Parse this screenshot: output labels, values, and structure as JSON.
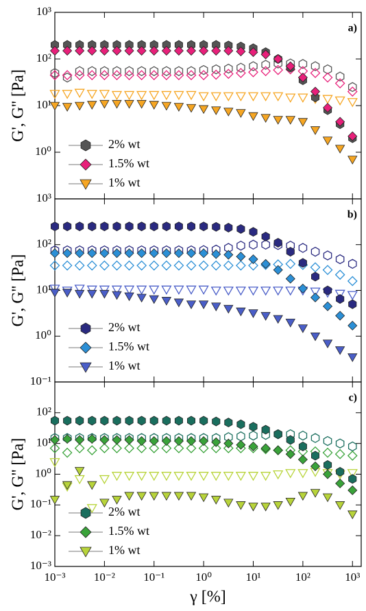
{
  "chart_data": [
    {
      "type": "scatter",
      "label": "a)",
      "ylabel": "G', G'' [Pa]",
      "log_x": true,
      "log_y": true,
      "legend": "lower left",
      "xlim": [
        0.001,
        1500
      ],
      "xticks": [
        0.001,
        0.01,
        0.1,
        1,
        10,
        100,
        1000
      ],
      "ylim": [
        0.1,
        1000
      ],
      "yticks": [
        {
          "value": 1,
          "label": "10⁰"
        },
        {
          "value": 10,
          "label": "10¹"
        },
        {
          "value": 100,
          "label": "10²"
        },
        {
          "value": 1000,
          "label": "10³"
        }
      ],
      "x": [
        0.001,
        0.00178,
        0.00316,
        0.00562,
        0.01,
        0.0178,
        0.0316,
        0.0562,
        0.1,
        0.178,
        0.316,
        0.562,
        1,
        1.78,
        3.16,
        5.62,
        10,
        17.8,
        31.6,
        56.2,
        100,
        178,
        316,
        562,
        1000
      ],
      "series": [
        {
          "name": "2% wt",
          "color": "#555555",
          "marker": "hexagon",
          "filled": true,
          "values": [
            200,
            200,
            200,
            200,
            200,
            200,
            200,
            200,
            200,
            200,
            200,
            200,
            200,
            200,
            195,
            185,
            170,
            140,
            100,
            65,
            35,
            15,
            8,
            4,
            2
          ]
        },
        {
          "color": "#555555",
          "marker": "hexagon",
          "filled": false,
          "values": [
            50,
            40,
            55,
            55,
            55,
            55,
            55,
            55,
            55,
            55,
            55,
            55,
            58,
            60,
            62,
            65,
            70,
            75,
            80,
            80,
            78,
            70,
            60,
            42,
            25
          ]
        },
        {
          "name": "1.5% wt",
          "color": "#e8207a",
          "marker": "diamond",
          "filled": true,
          "values": [
            150,
            150,
            150,
            150,
            150,
            150,
            150,
            150,
            150,
            150,
            150,
            150,
            150,
            150,
            150,
            145,
            140,
            125,
            100,
            70,
            40,
            20,
            9,
            4.5,
            2.2
          ]
        },
        {
          "color": "#e8207a",
          "marker": "diamond",
          "filled": false,
          "values": [
            45,
            45,
            45,
            45,
            45,
            45,
            45,
            45,
            45,
            45,
            45,
            45,
            45,
            46,
            48,
            50,
            52,
            55,
            58,
            60,
            55,
            50,
            40,
            30,
            20
          ]
        },
        {
          "name": "1% wt",
          "color": "#f6a623",
          "marker": "triangle",
          "filled": true,
          "values": [
            10,
            9.5,
            10,
            10.5,
            11,
            11,
            11,
            11,
            10.5,
            10,
            9.5,
            9,
            8.5,
            8,
            7.5,
            7,
            6,
            5.5,
            5,
            5,
            4.5,
            3,
            1.8,
            1.2,
            0.7
          ]
        },
        {
          "color": "#f6a623",
          "marker": "triangle",
          "filled": false,
          "values": [
            18,
            18,
            19,
            18,
            18,
            17,
            17,
            17,
            17,
            17,
            17,
            17,
            16,
            16,
            16,
            16,
            16,
            16,
            16,
            15,
            15,
            14,
            14,
            13,
            12
          ]
        }
      ]
    },
    {
      "type": "scatter",
      "label": "b)",
      "ylabel": "G', G'' [Pa]",
      "log_x": true,
      "log_y": true,
      "legend": "lower left",
      "xlim": [
        0.001,
        1500
      ],
      "xticks": [
        0.001,
        0.01,
        0.1,
        1,
        10,
        100,
        1000
      ],
      "ylim": [
        0.1,
        1000
      ],
      "yticks": [
        {
          "value": 0.1,
          "label": "10⁻¹"
        },
        {
          "value": 1,
          "label": "10⁰"
        },
        {
          "value": 10,
          "label": "10¹"
        },
        {
          "value": 100,
          "label": "10²"
        },
        {
          "value": 1000,
          "label": "10³"
        }
      ],
      "x": [
        0.001,
        0.00178,
        0.00316,
        0.00562,
        0.01,
        0.0178,
        0.0316,
        0.0562,
        0.1,
        0.178,
        0.316,
        0.562,
        1,
        1.78,
        3.16,
        5.62,
        10,
        17.8,
        31.6,
        56.2,
        100,
        178,
        316,
        562,
        1000
      ],
      "series": [
        {
          "name": "2% wt",
          "color": "#2a2a80",
          "marker": "hexagon",
          "filled": true,
          "values": [
            250,
            250,
            250,
            250,
            250,
            250,
            250,
            250,
            250,
            250,
            250,
            250,
            250,
            245,
            235,
            220,
            190,
            150,
            110,
            70,
            40,
            20,
            10,
            6.5,
            5
          ]
        },
        {
          "color": "#2a2a80",
          "marker": "hexagon",
          "filled": false,
          "values": [
            75,
            75,
            75,
            75,
            75,
            75,
            75,
            75,
            75,
            75,
            75,
            75,
            76,
            78,
            85,
            95,
            100,
            100,
            98,
            95,
            85,
            70,
            58,
            48,
            38
          ]
        },
        {
          "name": "1.5% wt",
          "color": "#2b8fd6",
          "marker": "diamond",
          "filled": true,
          "values": [
            65,
            65,
            65,
            65,
            65,
            65,
            65,
            65,
            65,
            65,
            65,
            65,
            65,
            62,
            60,
            55,
            48,
            38,
            28,
            18,
            11,
            7,
            4.5,
            2.8,
            1.7
          ]
        },
        {
          "color": "#2b8fd6",
          "marker": "diamond",
          "filled": false,
          "values": [
            35,
            35,
            35,
            35,
            35,
            35,
            35,
            35,
            35,
            35,
            35,
            35,
            35,
            35,
            35,
            35,
            35,
            36,
            37,
            38,
            36,
            32,
            28,
            22,
            16
          ]
        },
        {
          "name": "1% wt",
          "color": "#4a5ec8",
          "marker": "triangle",
          "filled": true,
          "values": [
            9,
            9,
            8.5,
            8.5,
            8.5,
            8,
            7.5,
            7,
            6.5,
            6,
            5.5,
            5,
            5,
            4.5,
            4,
            3.5,
            3.2,
            2.8,
            2.4,
            2,
            1.5,
            1,
            0.7,
            0.5,
            0.35
          ]
        },
        {
          "color": "#4a5ec8",
          "marker": "triangle",
          "filled": false,
          "values": [
            11,
            10,
            11,
            10.5,
            10.5,
            10.5,
            10.5,
            10.5,
            10.5,
            10.5,
            10.5,
            10.5,
            10.5,
            10,
            10,
            10,
            10,
            10,
            10,
            10,
            10,
            9.5,
            9,
            8.5,
            8
          ]
        }
      ]
    },
    {
      "type": "scatter",
      "label": "c)",
      "ylabel": "G', G'' [Pa]",
      "xlabel": "γ [%]",
      "log_x": true,
      "log_y": true,
      "legend": "lower left",
      "xlim": [
        0.001,
        1500
      ],
      "xticks": [
        {
          "value": 0.001,
          "label": "10⁻³"
        },
        {
          "value": 0.01,
          "label": "10⁻²"
        },
        {
          "value": 0.1,
          "label": "10⁻¹"
        },
        {
          "value": 1,
          "label": "10⁰"
        },
        {
          "value": 10,
          "label": "10¹"
        },
        {
          "value": 100,
          "label": "10²"
        },
        {
          "value": 1000,
          "label": "10³"
        }
      ],
      "ylim": [
        0.001,
        1000
      ],
      "yticks": [
        {
          "value": 0.001,
          "label": "10⁻³"
        },
        {
          "value": 0.01,
          "label": "10⁻²"
        },
        {
          "value": 0.1,
          "label": "10⁻¹"
        },
        {
          "value": 1,
          "label": "10⁰"
        },
        {
          "value": 10,
          "label": "10¹"
        },
        {
          "value": 100,
          "label": "10²"
        }
      ],
      "x": [
        0.001,
        0.00178,
        0.00316,
        0.00562,
        0.01,
        0.0178,
        0.0316,
        0.0562,
        0.1,
        0.178,
        0.316,
        0.562,
        1,
        1.78,
        3.16,
        5.62,
        10,
        17.8,
        31.6,
        56.2,
        100,
        178,
        316,
        562,
        1000
      ],
      "series": [
        {
          "name": "2% wt",
          "color": "#1a6e5e",
          "marker": "hexagon",
          "filled": true,
          "values": [
            55,
            55,
            55,
            55,
            55,
            55,
            55,
            55,
            55,
            55,
            55,
            55,
            55,
            52,
            48,
            42,
            35,
            28,
            20,
            13,
            8,
            4,
            2,
            1.2,
            0.7
          ]
        },
        {
          "color": "#1a6e5e",
          "marker": "hexagon",
          "filled": false,
          "values": [
            15,
            15,
            15,
            15,
            15,
            15,
            15,
            15,
            15,
            15,
            15,
            15,
            15,
            15,
            16,
            17,
            18,
            19,
            20,
            20,
            18,
            15,
            12,
            10,
            8
          ]
        },
        {
          "name": "1.5% wt",
          "color": "#3aa33a",
          "marker": "diamond",
          "filled": true,
          "values": [
            13,
            14,
            13,
            14,
            13,
            13,
            13,
            12,
            12,
            12,
            12,
            12,
            12,
            11,
            10,
            9,
            8,
            7,
            6,
            4.5,
            3,
            1.8,
            1,
            0.5,
            0.3
          ]
        },
        {
          "color": "#3aa33a",
          "marker": "diamond",
          "filled": false,
          "values": [
            7,
            5,
            7,
            6,
            7,
            7,
            7,
            7,
            7,
            7,
            7,
            7,
            7,
            7,
            7,
            7,
            7,
            6.5,
            6,
            6,
            5.5,
            5.5,
            5,
            4.5,
            4
          ]
        },
        {
          "name": "1% wt",
          "color": "#b8d43a",
          "marker": "triangle",
          "filled": true,
          "values": [
            0.15,
            0.45,
            1.3,
            0.45,
            0.12,
            0.15,
            0.2,
            0.2,
            0.2,
            0.2,
            0.2,
            0.2,
            0.18,
            0.15,
            0.12,
            0.1,
            0.09,
            0.09,
            0.1,
            0.13,
            0.2,
            0.25,
            0.18,
            0.1,
            0.05
          ]
        },
        {
          "color": "#b8d43a",
          "marker": "triangle",
          "filled": false,
          "values": [
            2.5,
            0.4,
            0.7,
            0.08,
            0.7,
            0.9,
            0.9,
            0.9,
            0.9,
            0.9,
            0.9,
            0.9,
            0.9,
            0.9,
            0.9,
            0.9,
            0.9,
            0.9,
            1,
            1.1,
            1.1,
            1.2,
            1.1,
            1,
            1.1
          ]
        }
      ]
    }
  ]
}
